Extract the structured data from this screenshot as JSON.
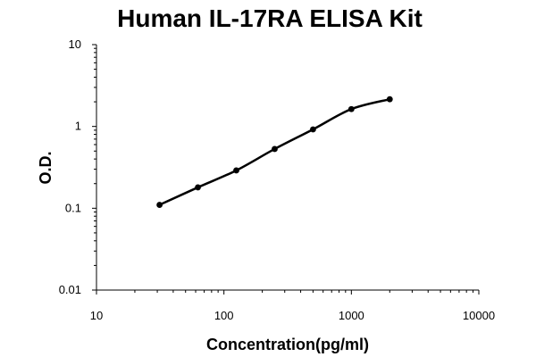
{
  "chart_data": {
    "type": "line",
    "title": "Human IL-17RA ELISA Kit",
    "xlabel": "Concentration(pg/ml)",
    "ylabel": "O.D.",
    "xscale": "log",
    "yscale": "log",
    "xlim": [
      10,
      10000
    ],
    "ylim": [
      0.01,
      10
    ],
    "x_ticks": [
      "10",
      "100",
      "1000",
      "10000"
    ],
    "y_ticks": [
      "0.01",
      "0.1",
      "1",
      "10"
    ],
    "grid": false,
    "legend": "none",
    "series": [
      {
        "x": [
          31.25,
          62.5,
          125,
          250,
          500,
          1000,
          2000
        ],
        "y": [
          0.11,
          0.18,
          0.29,
          0.53,
          0.92,
          1.63,
          2.15
        ],
        "marker": "circle",
        "color": "#000000"
      }
    ]
  }
}
